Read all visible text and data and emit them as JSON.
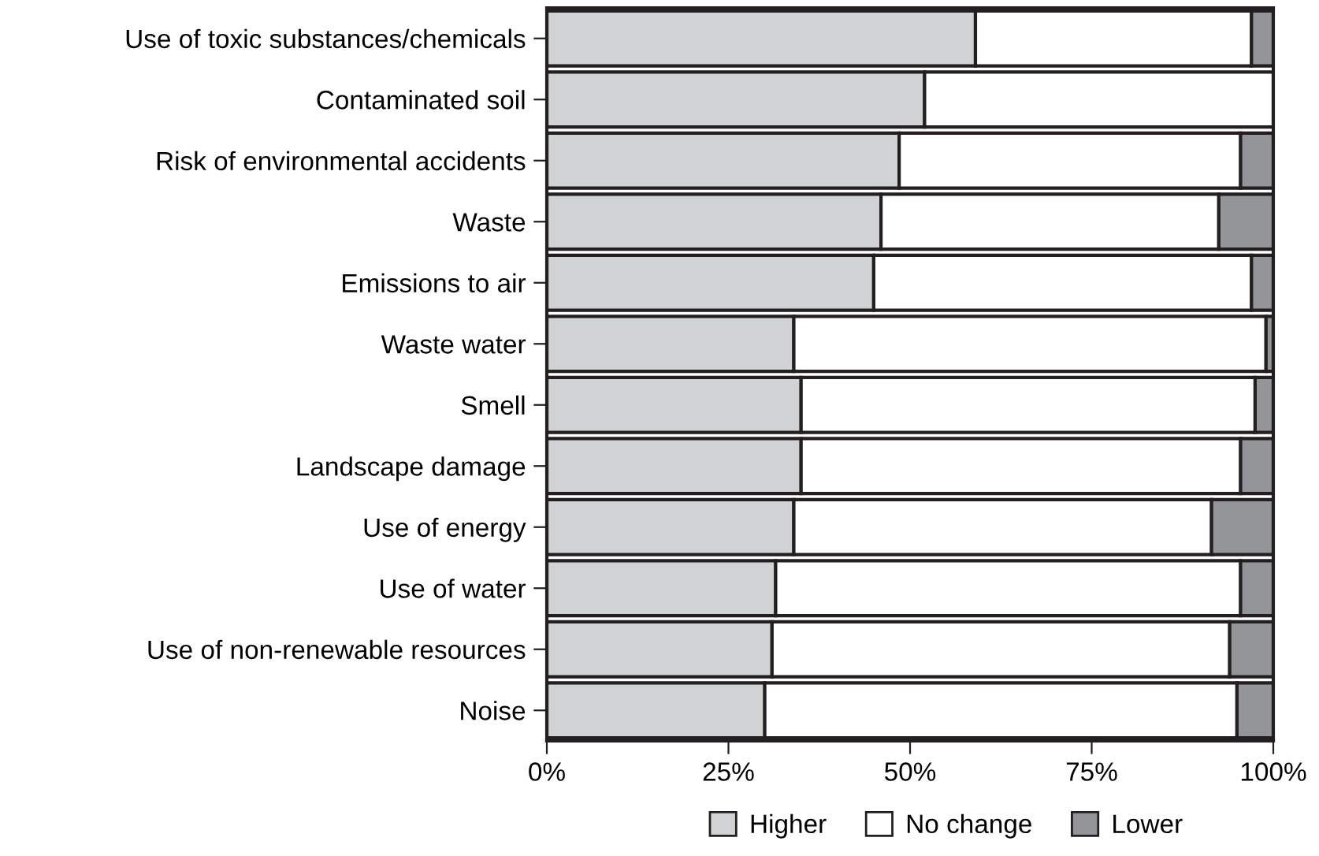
{
  "chart_data": {
    "type": "bar",
    "orientation": "horizontal",
    "stacked": true,
    "categories": [
      "Use of toxic substances/chemicals",
      "Contaminated soil",
      "Risk of environmental accidents",
      "Waste",
      "Emissions to air",
      "Waste water",
      "Smell",
      "Landscape damage",
      "Use of energy",
      "Use of water",
      "Use of non-renewable resources",
      "Noise"
    ],
    "series": [
      {
        "name": "Higher",
        "color": "#d1d2d4",
        "values": [
          59,
          52,
          48.5,
          46,
          45,
          34,
          35,
          35,
          34,
          31.5,
          31,
          30
        ]
      },
      {
        "name": "No change",
        "color": "#ffffff",
        "values": [
          38,
          48,
          47,
          46.5,
          52,
          65,
          62.5,
          60.5,
          57.5,
          64,
          63,
          65
        ]
      },
      {
        "name": "Lower",
        "color": "#939598",
        "values": [
          3,
          null,
          4.5,
          7.5,
          3,
          1,
          2.5,
          4.5,
          8.5,
          4.5,
          6,
          5
        ]
      }
    ],
    "xlim": [
      0,
      100
    ],
    "xticks": [
      {
        "value": 0,
        "label": "0%"
      },
      {
        "value": 25,
        "label": "25%"
      },
      {
        "value": 50,
        "label": "50%"
      },
      {
        "value": 75,
        "label": "75%"
      },
      {
        "value": 100,
        "label": "100%"
      }
    ],
    "grid": false,
    "legend": "bottom"
  }
}
